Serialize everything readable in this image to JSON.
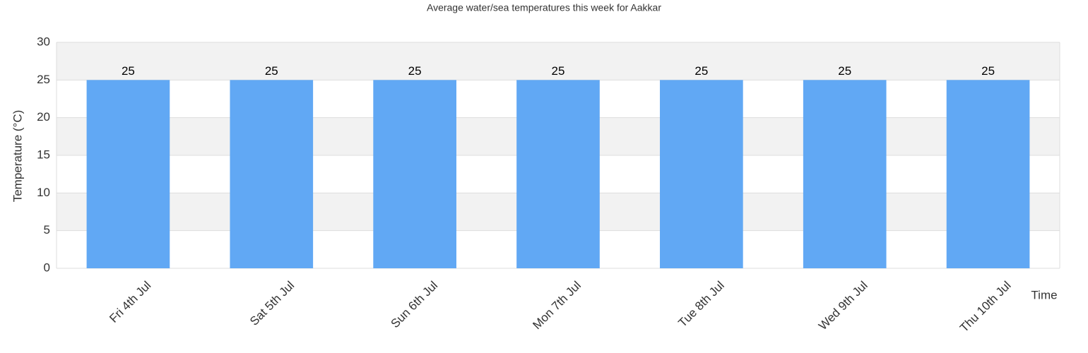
{
  "chart_data": {
    "type": "bar",
    "title": "Average water/sea temperatures this week for Aakkar",
    "x_label": "Time",
    "y_label": "Temperature (°C)",
    "categories": [
      "Fri 4th Jul",
      "Sat 5th Jul",
      "Sun 6th Jul",
      "Mon 7th Jul",
      "Tue 8th Jul",
      "Wed 9th Jul",
      "Thu 10th Jul"
    ],
    "values": [
      25,
      25,
      25,
      25,
      25,
      25,
      25
    ],
    "color": "#61a8f4",
    "ylim": [
      0,
      30
    ],
    "yticks": [
      0,
      5,
      10,
      15,
      20,
      25,
      30
    ],
    "grid": true,
    "data_labels": true
  }
}
